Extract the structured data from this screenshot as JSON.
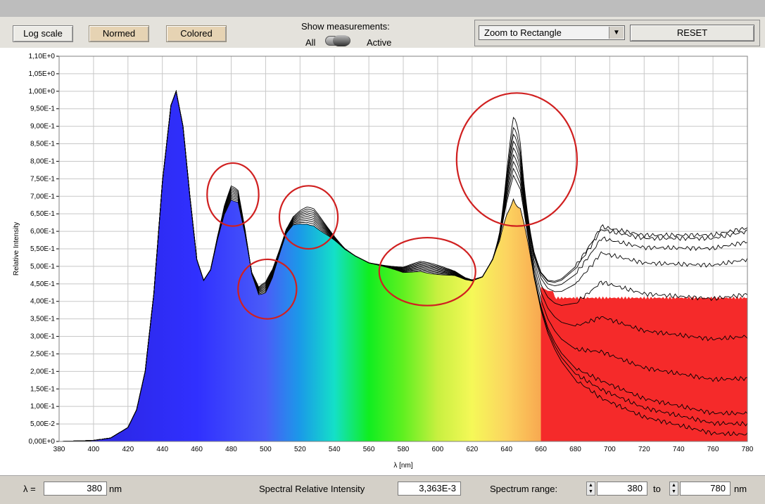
{
  "toolbar": {
    "log_scale_label": "Log scale",
    "normed_label": "Normed",
    "colored_label": "Colored",
    "show_measurements_label": "Show measurements:",
    "toggle_left_label": "All",
    "toggle_right_label": "Active",
    "zoom_mode": "Zoom to Rectangle",
    "reset_label": "RESET"
  },
  "bottom": {
    "lambda_label": "λ =",
    "lambda_value": "380",
    "lambda_unit": "nm",
    "intensity_label": "Spectral Relative Intensity",
    "intensity_value": "3,363E-3",
    "range_label": "Spectrum range:",
    "range_from": "380",
    "range_to_label": "to",
    "range_to": "780",
    "range_unit": "nm"
  },
  "colors": {
    "plot_background": "#ffffff",
    "grid": "#c8c8c8",
    "curve": "#000000",
    "circle": "#d02020",
    "button_on": "#e6d3b3"
  },
  "chart_data": {
    "type": "area",
    "xlabel": "λ [nm]",
    "ylabel": "Relative Intensity",
    "xlim": [
      380,
      780
    ],
    "ylim": [
      0,
      1.1
    ],
    "x_ticks": [
      380,
      400,
      420,
      440,
      460,
      480,
      500,
      520,
      540,
      560,
      580,
      600,
      620,
      640,
      660,
      680,
      700,
      720,
      740,
      760,
      780
    ],
    "y_tick_labels": [
      "0,00E+0",
      "5,00E-2",
      "1,00E-1",
      "1,50E-1",
      "2,00E-1",
      "2,50E-1",
      "3,00E-1",
      "3,50E-1",
      "4,00E-1",
      "4,50E-1",
      "5,00E-1",
      "5,50E-1",
      "6,00E-1",
      "6,50E-1",
      "7,00E-1",
      "7,50E-1",
      "8,00E-1",
      "8,50E-1",
      "9,00E-1",
      "9,50E-1",
      "1,00E+0",
      "1,05E+0",
      "1,10E+0"
    ],
    "grid": true,
    "fill": "visible-spectrum gradient under the lowest normed curve",
    "spectra_count": 10,
    "x": [
      380,
      400,
      410,
      420,
      425,
      430,
      435,
      440,
      445,
      448,
      452,
      456,
      460,
      464,
      468,
      472,
      476,
      480,
      484,
      488,
      492,
      496,
      500,
      504,
      508,
      512,
      516,
      520,
      524,
      528,
      532,
      536,
      540,
      546,
      552,
      560,
      570,
      580,
      590,
      600,
      610,
      616,
      620,
      626,
      632,
      636,
      640,
      644,
      648,
      652,
      656,
      660,
      664,
      668,
      672,
      676,
      680,
      690,
      700,
      710,
      720,
      730,
      740,
      750,
      760,
      770,
      780
    ],
    "base_shape": [
      0,
      0.003,
      0.01,
      0.04,
      0.09,
      0.2,
      0.42,
      0.74,
      0.96,
      1.0,
      0.9,
      0.7,
      0.52,
      0.46,
      0.49,
      0.58,
      0.66,
      0.71,
      0.7,
      0.6,
      0.48,
      0.43,
      0.44,
      0.48,
      0.54,
      0.6,
      0.63,
      0.64,
      0.645,
      0.64,
      0.62,
      0.6,
      0.58,
      0.55,
      0.53,
      0.51,
      0.5,
      0.49,
      0.5,
      0.49,
      0.48,
      0.465,
      0.46,
      0.47,
      0.52,
      0.58,
      0.68,
      0.76,
      0.72,
      0.6,
      0.48,
      0.39,
      0.33,
      0.29,
      0.26,
      0.24,
      0.22,
      0.2,
      0.18,
      0.16,
      0.14,
      0.13,
      0.12,
      0.11,
      0.1,
      0.1,
      0.1
    ],
    "series_tails_at_780nm": [
      0.61,
      0.6,
      0.57,
      0.52,
      0.42,
      0.3,
      0.18,
      0.08,
      0.05,
      0.02
    ],
    "red_peak_values": [
      0.93,
      0.9,
      0.88,
      0.86,
      0.84,
      0.82,
      0.8,
      0.78,
      0.76,
      0.69
    ],
    "lowest_tail_fill_level": 0.41,
    "highlight_circles": [
      {
        "label": "peak-480",
        "cx_nm": 481,
        "cy": 0.705,
        "rx_nm": 15,
        "ry": 0.09
      },
      {
        "label": "dip-500",
        "cx_nm": 501,
        "cy": 0.435,
        "rx_nm": 17,
        "ry": 0.085
      },
      {
        "label": "peak-525",
        "cx_nm": 525,
        "cy": 0.64,
        "rx_nm": 17,
        "ry": 0.09
      },
      {
        "label": "shoulder-595",
        "cx_nm": 594,
        "cy": 0.485,
        "rx_nm": 28,
        "ry": 0.097
      },
      {
        "label": "peak-645",
        "cx_nm": 646,
        "cy": 0.805,
        "rx_nm": 35,
        "ry": 0.19
      }
    ]
  }
}
